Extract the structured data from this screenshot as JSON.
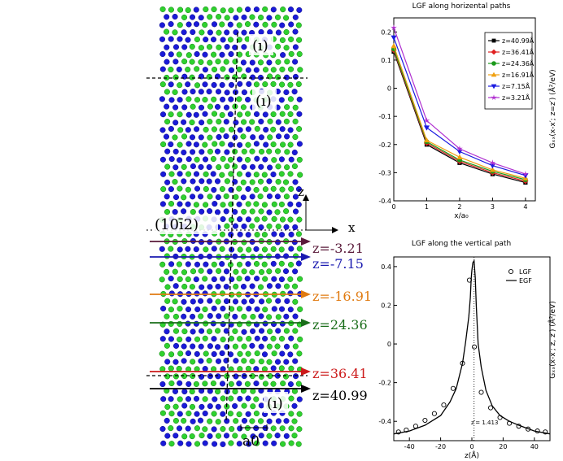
{
  "figure": {
    "left_panel": {
      "plane_label": "(10ī2)",
      "axis_z": "z",
      "axis_x": "x",
      "scale_label": "a0",
      "twin_marks": [
        "(ı)",
        "(ı)",
        "(ı)"
      ],
      "atom_colors": {
        "green": "#2fd12f",
        "blue": "#1a1ad8"
      },
      "paths": [
        {
          "label": "z=-3.21",
          "color": "#5a1a3a"
        },
        {
          "label": "z=-7.15",
          "color": "#1a1ab0"
        },
        {
          "label": "z=-16.91",
          "color": "#e07a10"
        },
        {
          "label": "z=24.36",
          "color": "#1a6e1a"
        },
        {
          "label": "z=36.41",
          "color": "#cc1a1a"
        },
        {
          "label": "z=40.99",
          "color": "#000000"
        }
      ]
    }
  },
  "chart_data": [
    {
      "type": "line",
      "title": "LGF along horizental paths",
      "xlabel": "x/a₀",
      "ylabel": "Gₓₓ(x-x′; z=z′) (Å²/eV)",
      "xlim": [
        0,
        4.3
      ],
      "ylim": [
        -0.4,
        0.25
      ],
      "xticks": [
        0,
        1,
        2,
        3,
        4
      ],
      "yticks": [
        -0.4,
        -0.3,
        -0.2,
        -0.1,
        0,
        0.1,
        0.2
      ],
      "legend_position": "top-right",
      "x": [
        0,
        1,
        2,
        3,
        4
      ],
      "series": [
        {
          "name": "z=40.99Å",
          "color": "#000000",
          "marker": "square",
          "values": [
            0.13,
            -0.2,
            -0.265,
            -0.305,
            -0.335
          ]
        },
        {
          "name": "z=36.41Å",
          "color": "#e02020",
          "marker": "diamond",
          "values": [
            0.135,
            -0.195,
            -0.26,
            -0.3,
            -0.33
          ]
        },
        {
          "name": "z=24.36Å",
          "color": "#1a9a1a",
          "marker": "circle",
          "values": [
            0.14,
            -0.19,
            -0.255,
            -0.295,
            -0.325
          ]
        },
        {
          "name": "z=16.91Å",
          "color": "#f0a010",
          "marker": "triangle-up",
          "values": [
            0.15,
            -0.185,
            -0.245,
            -0.29,
            -0.32
          ]
        },
        {
          "name": "z=7.15Å",
          "color": "#1a1ae0",
          "marker": "triangle-down",
          "values": [
            0.18,
            -0.14,
            -0.225,
            -0.275,
            -0.31
          ]
        },
        {
          "name": "z=3.21Å",
          "color": "#b030d0",
          "marker": "star",
          "values": [
            0.215,
            -0.115,
            -0.215,
            -0.265,
            -0.305
          ]
        }
      ]
    },
    {
      "type": "line",
      "title": "LGF along the vertical path",
      "xlabel": "z(Å)",
      "ylabel": "Gₓₓ(x-x′; z, z′) (Å²/eV)",
      "xlim": [
        -50,
        50
      ],
      "ylim": [
        -0.5,
        0.45
      ],
      "xticks": [
        -40,
        -20,
        0,
        20,
        40
      ],
      "xtick_labels": [
        "-40",
        "-20",
        "0",
        "20",
        "40"
      ],
      "yticks": [
        -0.4,
        -0.2,
        0,
        0.2,
        0.4
      ],
      "legend_position": "top-right",
      "annotation": "z′= 1.413",
      "annotation_x": 1.413,
      "series": [
        {
          "name": "LGF",
          "style": "open-circle",
          "x": [
            -47,
            -42,
            -36,
            -30,
            -24,
            -18,
            -12,
            -6,
            -1.6,
            1.6,
            6,
            12,
            18,
            24,
            30,
            36,
            42,
            47
          ],
          "values": [
            -0.455,
            -0.445,
            -0.425,
            -0.395,
            -0.36,
            -0.315,
            -0.23,
            -0.1,
            0.33,
            -0.015,
            -0.25,
            -0.33,
            -0.38,
            -0.41,
            -0.425,
            -0.44,
            -0.45,
            -0.455
          ]
        },
        {
          "name": "EGF",
          "style": "line",
          "x": [
            -50,
            -40,
            -30,
            -20,
            -14,
            -10,
            -6,
            -4,
            -2,
            -1,
            -0.4,
            0,
            0.6,
            1.413,
            2.2,
            2.8,
            4,
            6,
            9,
            13,
            18,
            24,
            30,
            40,
            50
          ],
          "values": [
            -0.465,
            -0.45,
            -0.42,
            -0.37,
            -0.3,
            -0.23,
            -0.1,
            0.01,
            0.14,
            0.24,
            0.34,
            0.38,
            0.42,
            0.43,
            0.34,
            0.2,
            0.0,
            -0.12,
            -0.24,
            -0.32,
            -0.37,
            -0.4,
            -0.42,
            -0.45,
            -0.465
          ]
        }
      ]
    }
  ]
}
